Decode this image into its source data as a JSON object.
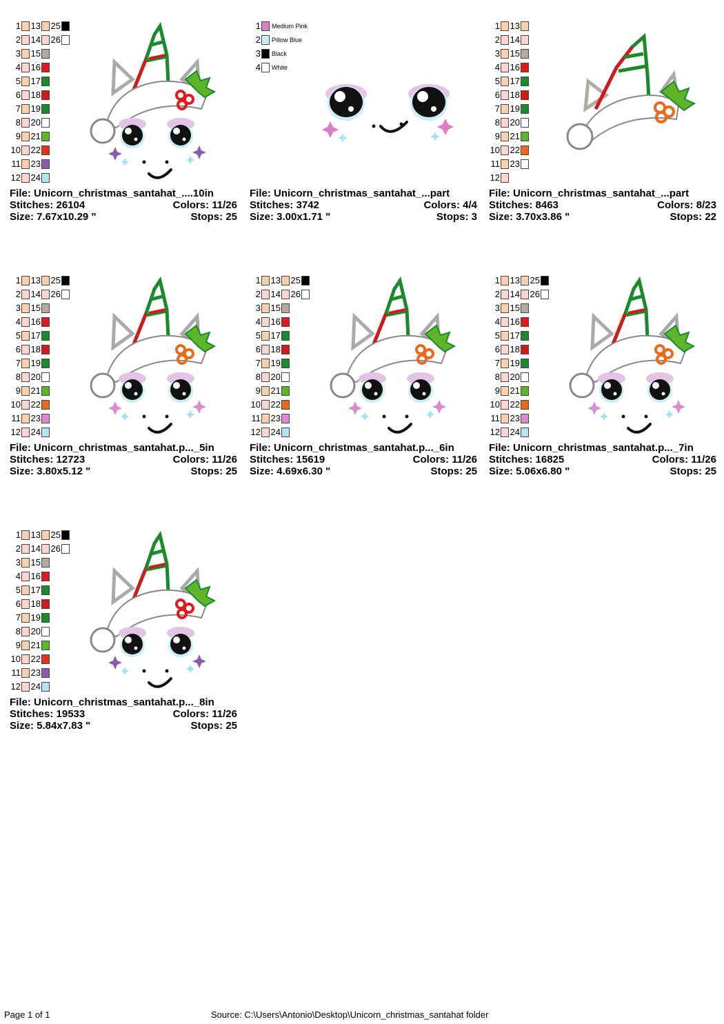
{
  "designs": [
    {
      "file": "File: Unicorn_christmas_santahat_....10in",
      "stitches": "Stitches: 26104",
      "colors": "Colors: 11/26",
      "size": "Size: 7.67x10.29 \"",
      "stops": "Stops: 25",
      "type": "full",
      "palette": [
        {
          "n": "1",
          "c": "#fbd0ae"
        },
        {
          "n": "2",
          "c": "#fcd4d0"
        },
        {
          "n": "3",
          "c": "#fbd0ae"
        },
        {
          "n": "4",
          "c": "#fcd4d0"
        },
        {
          "n": "5",
          "c": "#fbd0ae"
        },
        {
          "n": "6",
          "c": "#fcd4d0"
        },
        {
          "n": "7",
          "c": "#fbd0ae"
        },
        {
          "n": "8",
          "c": "#fcd4d0"
        },
        {
          "n": "9",
          "c": "#fbd0ae"
        },
        {
          "n": "10",
          "c": "#fcd4d0"
        },
        {
          "n": "11",
          "c": "#fbd0ae"
        },
        {
          "n": "12",
          "c": "#fcd4d0"
        },
        {
          "n": "13",
          "c": "#fbd0ae"
        },
        {
          "n": "14",
          "c": "#fcd4d0"
        },
        {
          "n": "15",
          "c": "#b3aba3"
        },
        {
          "n": "16",
          "c": "#e01b1b"
        },
        {
          "n": "17",
          "c": "#1a8a2a"
        },
        {
          "n": "18",
          "c": "#d01b1b"
        },
        {
          "n": "19",
          "c": "#1a8a2a"
        },
        {
          "n": "20",
          "c": "#ffffff"
        },
        {
          "n": "21",
          "c": "#5fb52a"
        },
        {
          "n": "22",
          "c": "#e4331a"
        },
        {
          "n": "23",
          "c": "#8c5bb0"
        },
        {
          "n": "24",
          "c": "#b5e4f0"
        },
        {
          "n": "25",
          "c": "#fbd0ae"
        },
        {
          "n": "26",
          "c": "#fcd4d0"
        }
      ],
      "palette_extra": [
        {
          "c": "#000000"
        },
        {
          "c": "#ffffff"
        }
      ]
    },
    {
      "file": "File: Unicorn_christmas_santahat_...part",
      "stitches": "Stitches: 3742",
      "colors": "Colors: 4/4",
      "size": "Size: 3.00x1.71 \"",
      "stops": "Stops: 3",
      "type": "face",
      "named_palette": [
        {
          "n": "1",
          "c": "#d97fc8",
          "name": "Medium Pink"
        },
        {
          "n": "2",
          "c": "#c8f0f4",
          "name": "Pillow Blue"
        },
        {
          "n": "3",
          "c": "#000000",
          "name": "Black"
        },
        {
          "n": "4",
          "c": "#ffffff",
          "name": "White"
        }
      ]
    },
    {
      "file": "File: Unicorn_christmas_santahat_...part",
      "stitches": "Stitches: 8463",
      "colors": "Colors: 8/23",
      "size": "Size: 3.70x3.86 \"",
      "stops": "Stops: 22",
      "type": "hat"
    },
    {
      "file": "File: Unicorn_christmas_santahat.p..._5in",
      "stitches": "Stitches: 12723",
      "colors": "Colors: 11/26",
      "size": "Size: 3.80x5.12 \"",
      "stops": "Stops: 25",
      "type": "full"
    },
    {
      "file": "File: Unicorn_christmas_santahat.p..._6in",
      "stitches": "Stitches: 15619",
      "colors": "Colors: 11/26",
      "size": "Size: 4.69x6.30 \"",
      "stops": "Stops: 25",
      "type": "full"
    },
    {
      "file": "File: Unicorn_christmas_santahat.p..._7in",
      "stitches": "Stitches: 16825",
      "colors": "Colors: 11/26",
      "size": "Size: 5.06x6.80 \"",
      "stops": "Stops: 25",
      "type": "full"
    },
    {
      "file": "File: Unicorn_christmas_santahat.p..._8in",
      "stitches": "Stitches: 19533",
      "colors": "Colors: 11/26",
      "size": "Size: 5.84x7.83 \"",
      "stops": "Stops: 25",
      "type": "full"
    }
  ],
  "palette_numbers": [
    "1",
    "2",
    "3",
    "4",
    "5",
    "6",
    "7",
    "8",
    "9",
    "10",
    "11",
    "12"
  ],
  "footer": {
    "page": "Page 1 of 1",
    "source": "Source: C:\\Users\\Antonio\\Desktop\\Unicorn_christmas_santahat folder"
  }
}
